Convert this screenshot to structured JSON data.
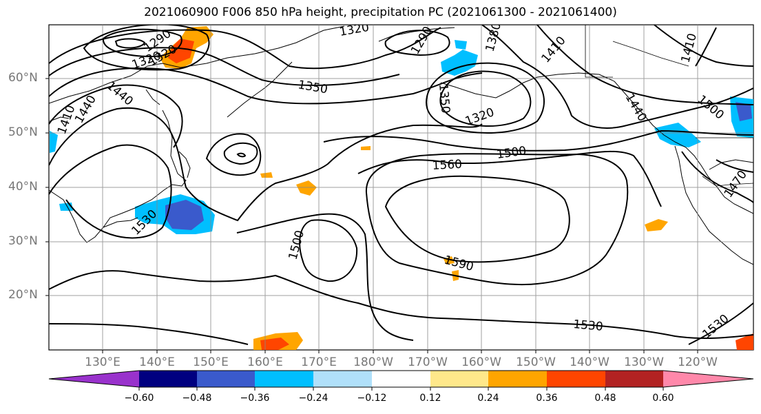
{
  "title": "2021060900 F006 850 hPa height, precipitation PC (2021061300 - 2021061400)",
  "lat_labels": [
    "60°N",
    "50°N",
    "40°N",
    "30°N",
    "20°N"
  ],
  "lon_labels": [
    "130°E",
    "140°E",
    "150°E",
    "160°E",
    "170°E",
    "180°W",
    "170°W",
    "160°W",
    "150°W",
    "140°W",
    "130°W",
    "120°W"
  ],
  "contour_labels": [
    "1320",
    "1290",
    "1320",
    "1350",
    "1320",
    "1290",
    "1380",
    "1410",
    "1410",
    "1440",
    "1440",
    "1350",
    "1320",
    "1410",
    "1440",
    "1500",
    "1560",
    "1500",
    "1530",
    "1500",
    "1590",
    "1530",
    "1530",
    "1470"
  ],
  "colorbar": {
    "tick_labels": [
      "−0.60",
      "−0.48",
      "−0.36",
      "−0.24",
      "−0.12",
      "0.12",
      "0.24",
      "0.36",
      "0.48",
      "0.60"
    ],
    "colors": [
      "#9932cc",
      "#000080",
      "#3a5acc",
      "#00bfff",
      "#b0e0fa",
      "#ffffff",
      "#ffe88a",
      "#ffa500",
      "#ff4500",
      "#b22222",
      "#ff88aa"
    ]
  },
  "colors": {
    "contour": "#000000",
    "coastline": "#000000",
    "grid": "#888888",
    "label_gray": "#777777"
  }
}
